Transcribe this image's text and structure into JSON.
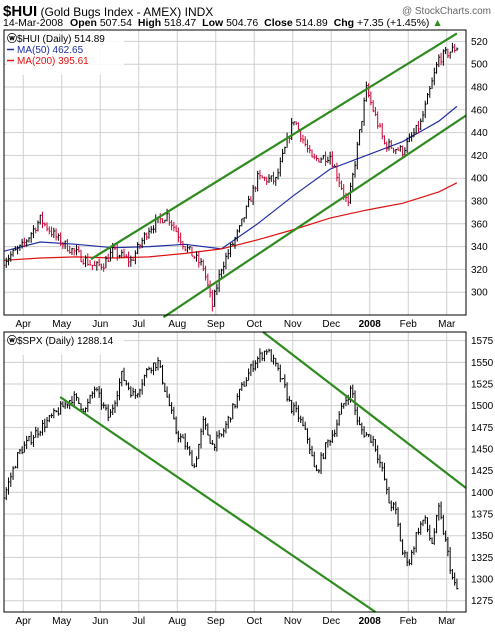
{
  "header": {
    "symbol": "$HUI",
    "name": "(Gold Bugs Index - AMEX)",
    "exchange": "INDX",
    "copyright": "@ StockCharts.com",
    "date": "14-Mar-2008",
    "open_label": "Open",
    "open_value": "507.54",
    "high_label": "High",
    "high_value": "518.47",
    "low_label": "Low",
    "low_value": "504.76",
    "close_label": "Close",
    "close_value": "514.89",
    "chg_label": "Chg",
    "chg_value": "+7.35 (+1.45%)",
    "chg_arrow": "▲"
  },
  "colors": {
    "price": "#000000",
    "down_bar": "#cc0033",
    "ma50": "#1f2f9f",
    "ma200": "#dd1111",
    "channel": "#2e8b1e",
    "grid": "#cfcfcf",
    "frame": "#000000"
  },
  "chart_data": [
    {
      "type": "line",
      "panel": "top",
      "title": "$HUI (Daily) 514.89",
      "legend": [
        {
          "label": "$HUI (Daily) 514.89",
          "color": "#000000"
        },
        {
          "label": "MA(50) 462.65",
          "color": "#1f2f9f"
        },
        {
          "label": "MA(200) 395.61",
          "color": "#dd1111"
        }
      ],
      "legend_placement": "top-left",
      "x_months": [
        "Apr",
        "May",
        "Jun",
        "Jul",
        "Aug",
        "Sep",
        "Oct",
        "Nov",
        "Dec",
        "2008",
        "Feb",
        "Mar"
      ],
      "y_ticks": [
        300,
        320,
        340,
        360,
        380,
        400,
        420,
        440,
        460,
        480,
        500,
        520
      ],
      "y_axis": "right",
      "ylim": [
        280,
        530
      ],
      "grid": true,
      "series": [
        {
          "name": "$HUI (Daily) 514.89",
          "x": [
            0,
            10,
            20,
            30,
            40,
            50,
            55,
            60,
            70,
            80,
            90,
            100,
            110,
            115,
            120,
            130,
            140,
            150,
            160,
            170,
            180,
            190,
            200,
            210,
            220,
            230,
            240,
            250
          ],
          "values": [
            328,
            340,
            364,
            346,
            334,
            322,
            325,
            336,
            327,
            356,
            368,
            340,
            322,
            288,
            322,
            355,
            400,
            398,
            452,
            416,
            420,
            376,
            478,
            430,
            424,
            448,
            505,
            515
          ]
        },
        {
          "name": "MA(50) 462.65",
          "x": [
            0,
            20,
            40,
            60,
            80,
            100,
            120,
            140,
            160,
            180,
            200,
            220,
            240,
            250
          ],
          "values": [
            336,
            344,
            342,
            339,
            340,
            342,
            338,
            360,
            385,
            408,
            420,
            432,
            450,
            463
          ]
        },
        {
          "name": "MA(200) 395.61",
          "x": [
            0,
            20,
            40,
            60,
            80,
            100,
            120,
            140,
            160,
            180,
            200,
            220,
            240,
            250
          ],
          "values": [
            328,
            330,
            331,
            330,
            331,
            334,
            338,
            346,
            355,
            365,
            372,
            378,
            388,
            396
          ]
        }
      ],
      "channel_lines": [
        {
          "x": [
            48,
            250
          ],
          "values": [
            329,
            527
          ]
        },
        {
          "x": [
            88,
            255
          ],
          "values": [
            278,
            455
          ]
        }
      ]
    },
    {
      "type": "line",
      "panel": "bottom",
      "title": "$SPX (Daily) 1288.14",
      "legend": [
        {
          "label": "$SPX (Daily) 1288.14",
          "color": "#000000"
        }
      ],
      "legend_placement": "top-left",
      "x_months": [
        "Apr",
        "May",
        "Jun",
        "Jul",
        "Aug",
        "Sep",
        "Oct",
        "Nov",
        "Dec",
        "2008",
        "Feb",
        "Mar"
      ],
      "y_ticks": [
        1275,
        1300,
        1325,
        1350,
        1375,
        1400,
        1425,
        1450,
        1475,
        1500,
        1525,
        1550,
        1575
      ],
      "y_axis": "right",
      "ylim": [
        1262,
        1585
      ],
      "grid": true,
      "series": [
        {
          "name": "$SPX (Daily) 1288.14",
          "x": [
            0,
            8,
            18,
            28,
            38,
            45,
            50,
            58,
            65,
            72,
            80,
            85,
            90,
            95,
            100,
            105,
            110,
            115,
            120,
            130,
            138,
            145,
            150,
            155,
            158,
            162,
            168,
            172,
            178,
            182,
            188,
            192,
            195,
            198,
            204,
            210,
            212,
            216,
            220,
            224,
            228,
            232,
            236,
            240,
            244,
            248,
            250
          ],
          "values": [
            1395,
            1445,
            1470,
            1490,
            1510,
            1495,
            1520,
            1485,
            1535,
            1510,
            1545,
            1550,
            1510,
            1470,
            1455,
            1430,
            1480,
            1455,
            1465,
            1515,
            1550,
            1565,
            1545,
            1520,
            1500,
            1490,
            1460,
            1420,
            1455,
            1470,
            1505,
            1520,
            1480,
            1470,
            1460,
            1415,
            1390,
            1380,
            1330,
            1320,
            1355,
            1370,
            1340,
            1380,
            1340,
            1295,
            1288
          ]
        }
      ],
      "channel_lines": [
        {
          "x": [
            143,
            255
          ],
          "values": [
            1585,
            1405
          ]
        },
        {
          "x": [
            31,
            205
          ],
          "values": [
            1510,
            1262
          ]
        }
      ]
    }
  ]
}
